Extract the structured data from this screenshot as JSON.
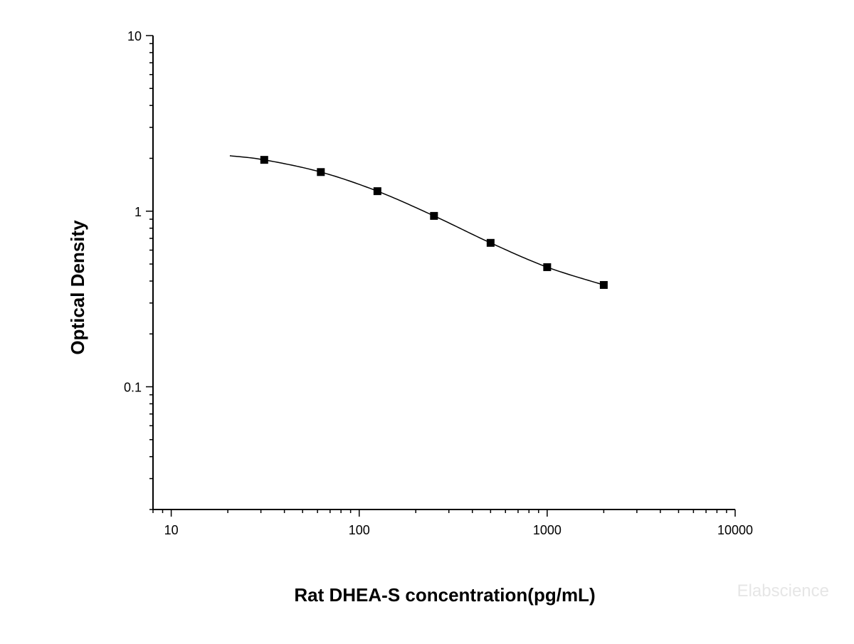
{
  "chart_data": {
    "type": "scatter",
    "title": "",
    "xlabel": "Rat DHEA-S concentration(pg/mL)",
    "ylabel": "Optical Density",
    "x_scale": "log",
    "y_scale": "log",
    "xlim": [
      8,
      10000
    ],
    "ylim": [
      0.02,
      10
    ],
    "x_ticks": [
      {
        "value": 10,
        "label": "10"
      },
      {
        "value": 100,
        "label": "100"
      },
      {
        "value": 1000,
        "label": "1000"
      },
      {
        "value": 10000,
        "label": "10000"
      }
    ],
    "y_ticks": [
      {
        "value": 0.1,
        "label": "0.1"
      },
      {
        "value": 1,
        "label": "1"
      },
      {
        "value": 10,
        "label": "10"
      }
    ],
    "grid": false,
    "legend": false,
    "series": [
      {
        "points": [
          {
            "x": 31.25,
            "y": 1.96
          },
          {
            "x": 62.5,
            "y": 1.67
          },
          {
            "x": 125,
            "y": 1.3
          },
          {
            "x": 250,
            "y": 0.94
          },
          {
            "x": 500,
            "y": 0.66
          },
          {
            "x": 1000,
            "y": 0.48
          },
          {
            "x": 2000,
            "y": 0.38
          }
        ],
        "marker": "square",
        "color": "#000000",
        "fit_curve": {
          "x_range": [
            20.5,
            2000
          ],
          "color": "#000000"
        }
      }
    ],
    "watermark": "Elabscience"
  }
}
